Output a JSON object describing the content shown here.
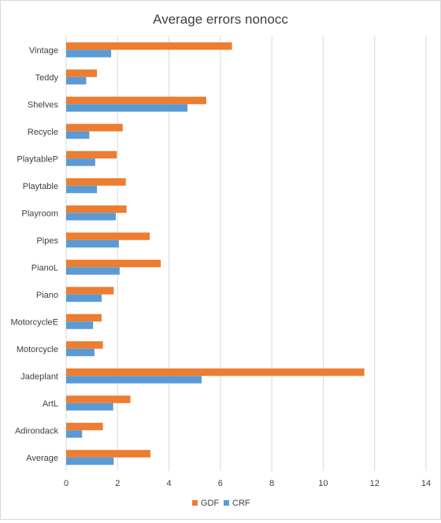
{
  "chart_data": {
    "type": "bar",
    "orientation": "horizontal",
    "title": "Average errors nonocc",
    "xlabel": "",
    "ylabel": "",
    "categories": [
      "Vintage",
      "Teddy",
      "Shelves",
      "Recycle",
      "PlaytableP",
      "Playtable",
      "Playroom",
      "Pipes",
      "PianoL",
      "Piano",
      "MotorcycleE",
      "Motorcycle",
      "Jadeplant",
      "ArtL",
      "Adirondack",
      "Average"
    ],
    "series": [
      {
        "name": "GDF",
        "color": "#ED7D31",
        "values": [
          6.45,
          1.2,
          5.45,
          2.2,
          1.97,
          2.32,
          2.35,
          3.25,
          3.68,
          1.85,
          1.38,
          1.43,
          11.6,
          2.5,
          1.43,
          3.28
        ]
      },
      {
        "name": "CRF",
        "color": "#5B9BD5",
        "values": [
          1.75,
          0.78,
          4.72,
          0.9,
          1.13,
          1.2,
          1.93,
          2.05,
          2.08,
          1.38,
          1.05,
          1.1,
          5.27,
          1.83,
          0.62,
          1.85
        ]
      }
    ],
    "xlim": [
      0,
      14
    ],
    "xticks": [
      "0",
      "2",
      "4",
      "6",
      "8",
      "10",
      "12",
      "14"
    ],
    "grid": true,
    "legend_position": "bottom"
  }
}
